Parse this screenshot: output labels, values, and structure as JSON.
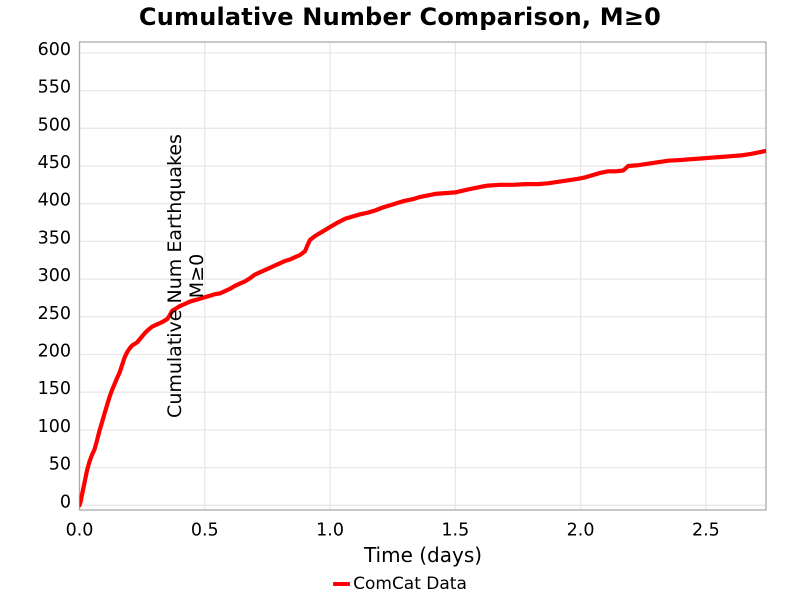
{
  "colors": {
    "line": "#ff0000",
    "grid": "#e8e8e8",
    "spine": "#ababab",
    "text": "#000000",
    "background": "#ffffff"
  },
  "chart_data": {
    "type": "line",
    "title": "Cumulative Number Comparison, M≥0",
    "xlabel": "Time (days)",
    "ylabel": "Cumulative Num Earthquakes M≥0",
    "xlim": [
      0,
      2.74
    ],
    "ylim": [
      0,
      600
    ],
    "xticks": [
      0.0,
      0.5,
      1.0,
      1.5,
      2.0,
      2.5
    ],
    "xtick_labels": [
      "0.0",
      "0.5",
      "1.0",
      "1.5",
      "2.0",
      "2.5"
    ],
    "yticks": [
      0,
      50,
      100,
      150,
      200,
      250,
      300,
      350,
      400,
      450,
      500,
      550,
      600
    ],
    "grid": true,
    "legend_position": "bottom-center",
    "series": [
      {
        "name": "ComCat Data",
        "color": "#ff0000",
        "points": [
          [
            0.0,
            0
          ],
          [
            0.005,
            6
          ],
          [
            0.01,
            14
          ],
          [
            0.02,
            30
          ],
          [
            0.03,
            46
          ],
          [
            0.04,
            58
          ],
          [
            0.05,
            67
          ],
          [
            0.06,
            74
          ],
          [
            0.07,
            86
          ],
          [
            0.08,
            99
          ],
          [
            0.09,
            110
          ],
          [
            0.1,
            122
          ],
          [
            0.11,
            133
          ],
          [
            0.12,
            144
          ],
          [
            0.13,
            153
          ],
          [
            0.14,
            161
          ],
          [
            0.15,
            169
          ],
          [
            0.16,
            176
          ],
          [
            0.17,
            186
          ],
          [
            0.18,
            196
          ],
          [
            0.19,
            203
          ],
          [
            0.2,
            208
          ],
          [
            0.21,
            212
          ],
          [
            0.22,
            214
          ],
          [
            0.23,
            216
          ],
          [
            0.245,
            222
          ],
          [
            0.26,
            228
          ],
          [
            0.275,
            233
          ],
          [
            0.29,
            237
          ],
          [
            0.31,
            240
          ],
          [
            0.33,
            243
          ],
          [
            0.35,
            247
          ],
          [
            0.36,
            252
          ],
          [
            0.37,
            258
          ],
          [
            0.385,
            261
          ],
          [
            0.4,
            264
          ],
          [
            0.42,
            267
          ],
          [
            0.44,
            270
          ],
          [
            0.46,
            272
          ],
          [
            0.48,
            274
          ],
          [
            0.5,
            276
          ],
          [
            0.52,
            278
          ],
          [
            0.54,
            280
          ],
          [
            0.56,
            281
          ],
          [
            0.58,
            284
          ],
          [
            0.6,
            287
          ],
          [
            0.62,
            291
          ],
          [
            0.64,
            294
          ],
          [
            0.66,
            297
          ],
          [
            0.68,
            301
          ],
          [
            0.7,
            306
          ],
          [
            0.72,
            309
          ],
          [
            0.74,
            312
          ],
          [
            0.76,
            315
          ],
          [
            0.78,
            318
          ],
          [
            0.8,
            321
          ],
          [
            0.82,
            324
          ],
          [
            0.84,
            326
          ],
          [
            0.86,
            329
          ],
          [
            0.88,
            332
          ],
          [
            0.9,
            337
          ],
          [
            0.91,
            345
          ],
          [
            0.92,
            352
          ],
          [
            0.94,
            357
          ],
          [
            0.96,
            361
          ],
          [
            0.98,
            365
          ],
          [
            1.0,
            369
          ],
          [
            1.03,
            375
          ],
          [
            1.06,
            380
          ],
          [
            1.09,
            383
          ],
          [
            1.12,
            386
          ],
          [
            1.15,
            388
          ],
          [
            1.18,
            391
          ],
          [
            1.21,
            395
          ],
          [
            1.24,
            398
          ],
          [
            1.27,
            401
          ],
          [
            1.3,
            404
          ],
          [
            1.33,
            406
          ],
          [
            1.36,
            409
          ],
          [
            1.39,
            411
          ],
          [
            1.42,
            413
          ],
          [
            1.46,
            414
          ],
          [
            1.5,
            415
          ],
          [
            1.54,
            418
          ],
          [
            1.58,
            421
          ],
          [
            1.61,
            423
          ],
          [
            1.63,
            424
          ],
          [
            1.68,
            425
          ],
          [
            1.73,
            425
          ],
          [
            1.78,
            426
          ],
          [
            1.83,
            426
          ],
          [
            1.87,
            427
          ],
          [
            1.91,
            429
          ],
          [
            1.95,
            431
          ],
          [
            1.99,
            433
          ],
          [
            2.02,
            435
          ],
          [
            2.05,
            438
          ],
          [
            2.08,
            441
          ],
          [
            2.11,
            443
          ],
          [
            2.14,
            443
          ],
          [
            2.17,
            444
          ],
          [
            2.19,
            450
          ],
          [
            2.23,
            451
          ],
          [
            2.27,
            453
          ],
          [
            2.31,
            455
          ],
          [
            2.35,
            457
          ],
          [
            2.4,
            458
          ],
          [
            2.44,
            459
          ],
          [
            2.48,
            460
          ],
          [
            2.52,
            461
          ],
          [
            2.56,
            462
          ],
          [
            2.6,
            463
          ],
          [
            2.64,
            464
          ],
          [
            2.68,
            466
          ],
          [
            2.71,
            468
          ],
          [
            2.74,
            470
          ]
        ]
      }
    ]
  }
}
